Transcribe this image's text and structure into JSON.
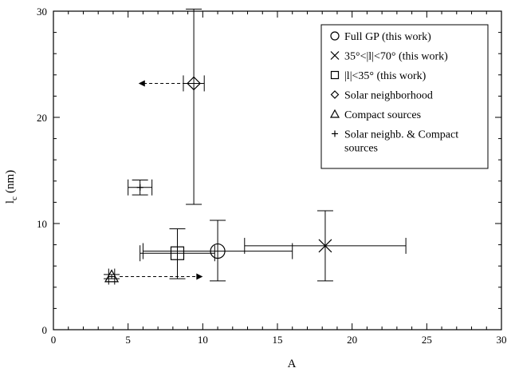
{
  "chart_data": {
    "type": "scatter",
    "xlabel": "A",
    "ylabel_main": "l",
    "ylabel_sub": "c",
    "ylabel_unit": "(nm)",
    "xlim": [
      0,
      30
    ],
    "ylim": [
      0,
      30
    ],
    "xticks": [
      0,
      5,
      10,
      15,
      20,
      25,
      30
    ],
    "yticks": [
      0,
      10,
      20,
      30
    ],
    "legend_position": "top-right",
    "series": [
      {
        "name": "Full GP (this work)",
        "marker": "circle",
        "points": [
          {
            "x": 11.0,
            "y": 7.4,
            "xerr": [
              5.0,
              5.0
            ],
            "yerr": [
              2.8,
              2.9
            ]
          }
        ]
      },
      {
        "name": "35°<|l|<70° (this work)",
        "marker": "x",
        "points": [
          {
            "x": 18.2,
            "y": 7.9,
            "xerr": [
              5.4,
              5.4
            ],
            "yerr": [
              3.3,
              3.3
            ]
          }
        ]
      },
      {
        "name": "|l|<35° (this work)",
        "marker": "square",
        "points": [
          {
            "x": 8.3,
            "y": 7.2,
            "xerr": [
              2.5,
              2.5
            ],
            "yerr": [
              2.4,
              2.3
            ]
          }
        ]
      },
      {
        "name": "Solar neighborhood",
        "marker": "diamond",
        "points": [
          {
            "x": 9.4,
            "y": 23.2,
            "xerr": [
              0.7,
              0.7
            ],
            "yerr": [
              11.4,
              7.0
            ],
            "arrow_to_x": 5.7
          }
        ]
      },
      {
        "name": "Compact sources",
        "marker": "triangle",
        "points": [
          {
            "x": 3.9,
            "y": 5.0,
            "xerr": [
              0.2,
              0.2
            ],
            "yerr": [
              0.2,
              0.2
            ],
            "arrow_to_x": 10.0
          }
        ]
      },
      {
        "name": "Solar neighb. & Compact sources",
        "marker": "plus",
        "points": [
          {
            "x": 5.8,
            "y": 13.4,
            "xerr": [
              0.8,
              0.8
            ],
            "yerr": [
              0.7,
              0.7
            ]
          }
        ]
      }
    ],
    "legend_lines": [
      {
        "symbol": "circle",
        "text": "Full GP (this work)"
      },
      {
        "symbol": "x",
        "text": "35°<|l|<70° (this work)"
      },
      {
        "symbol": "square",
        "text": "|l|<35° (this work)"
      },
      {
        "symbol": "diamond",
        "text": "Solar neighborhood"
      },
      {
        "symbol": "triangle",
        "text": "Compact sources"
      },
      {
        "symbol": "plus",
        "text": "Solar neighb. & Compact"
      },
      {
        "symbol": "",
        "text": "sources"
      }
    ],
    "colors": {
      "ink": "#000000",
      "background": "#ffffff"
    }
  }
}
